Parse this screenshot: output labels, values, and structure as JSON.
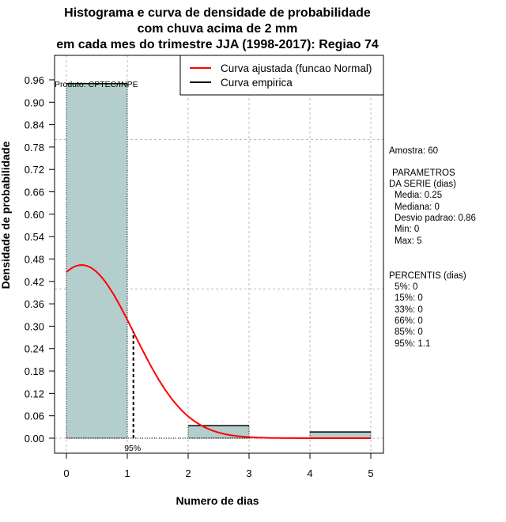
{
  "chart_data": {
    "type": "bar",
    "title": [
      "Histograma e curva de densidade de probabilidade",
      "com chuva acima de 2 mm",
      "em cada mes do trimestre JJA (1998-2017): Regiao 74"
    ],
    "xlabel": "Numero de dias",
    "ylabel": "Densidade de probabilidade",
    "xlim": [
      -0.2,
      5.2
    ],
    "ylim": [
      -0.04,
      1.03
    ],
    "xticks": [
      "0",
      "1",
      "2",
      "3",
      "4",
      "5"
    ],
    "yticks": [
      "0.00",
      "0.06",
      "0.12",
      "0.18",
      "0.24",
      "0.30",
      "0.36",
      "0.42",
      "0.48",
      "0.54",
      "0.60",
      "0.66",
      "0.72",
      "0.78",
      "0.84",
      "0.90",
      "0.96"
    ],
    "bins": [
      {
        "from": 0,
        "to": 1,
        "density": 0.95
      },
      {
        "from": 2,
        "to": 3,
        "density": 0.0333
      },
      {
        "from": 4,
        "to": 5,
        "density": 0.0167
      }
    ],
    "normal_fit": {
      "mean": 0.25,
      "sd": 0.86,
      "color": "#ff0000"
    },
    "percentile_line": {
      "x": 1.1,
      "label": "95%"
    },
    "hgrid": [
      0.4,
      0.8
    ],
    "legend": {
      "position": "top-right",
      "entries": [
        {
          "label": "Curva ajustada (funcao Normal)",
          "color": "#ff0000"
        },
        {
          "label": "Curva empirica",
          "color": "#000000"
        }
      ]
    },
    "bar_color": "#b4cdcd"
  },
  "credit": "Produto: CPTEC/INPE",
  "side": {
    "amostra": "Amostra: 60",
    "param1": "PARAMETROS",
    "param2": "DA SERIE (dias)",
    "media": "Media: 0.25",
    "mediana": "Mediana: 0",
    "desvio": "Desvio padrao: 0.86",
    "min": "Min: 0",
    "max": "Max: 5",
    "perc": "PERCENTIS (dias)",
    "p5": "5%: 0",
    "p15": "15%: 0",
    "p33": "33%: 0",
    "p66": "66%: 0",
    "p85": "85%: 0",
    "p95": "95%: 1.1"
  }
}
